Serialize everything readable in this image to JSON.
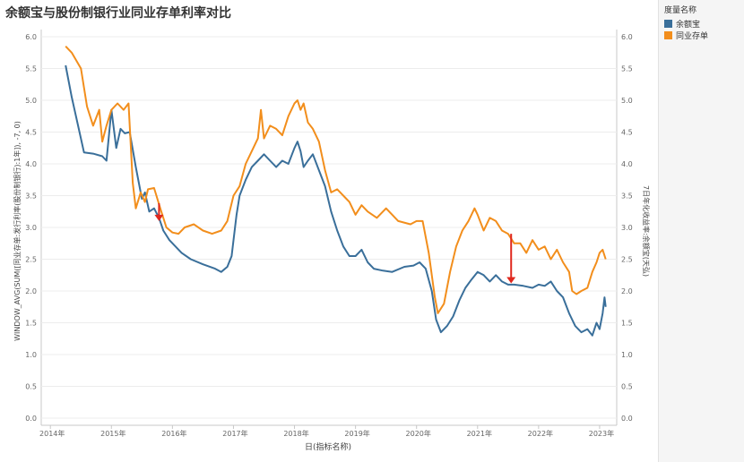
{
  "title": "余额宝与股份制银行业同业存单利率对比",
  "legend": {
    "title": "度量名称",
    "items": [
      {
        "label": "余额宝",
        "color": "#3a6f9a"
      },
      {
        "label": "同业存单",
        "color": "#f28e1c"
      }
    ]
  },
  "chart_data": {
    "type": "line",
    "xlabel": "日(指标名称)",
    "ylabel_left": "WINDOW_AVG(SUM([同业存单:发行利率(股份制银行):1年]), -7, 0)",
    "ylabel_right": "7日年化收益率:余额宝(天弘)",
    "ylim": [
      0,
      6
    ],
    "yticks": [
      "0.0",
      "0.5",
      "1.0",
      "1.5",
      "2.0",
      "2.5",
      "3.0",
      "3.5",
      "4.0",
      "4.5",
      "5.0",
      "5.5",
      "6.0"
    ],
    "xlim": [
      2013.85,
      2023.28
    ],
    "xticks": [
      "2014年",
      "2015年",
      "2016年",
      "2017年",
      "2018年",
      "2019年",
      "2020年",
      "2021年",
      "2022年",
      "2023年"
    ],
    "grid": "horizontal",
    "legend_position": "right",
    "series": [
      {
        "name": "余额宝",
        "color": "#3a6f9a",
        "points": [
          [
            2014.25,
            5.55
          ],
          [
            2014.35,
            5.05
          ],
          [
            2014.45,
            4.62
          ],
          [
            2014.55,
            4.18
          ],
          [
            2014.7,
            4.16
          ],
          [
            2014.85,
            4.12
          ],
          [
            2014.92,
            4.05
          ],
          [
            2015.0,
            4.85
          ],
          [
            2015.08,
            4.25
          ],
          [
            2015.15,
            4.55
          ],
          [
            2015.22,
            4.48
          ],
          [
            2015.3,
            4.5
          ],
          [
            2015.4,
            3.95
          ],
          [
            2015.5,
            3.45
          ],
          [
            2015.55,
            3.55
          ],
          [
            2015.62,
            3.25
          ],
          [
            2015.7,
            3.3
          ],
          [
            2015.78,
            3.15
          ],
          [
            2015.85,
            2.95
          ],
          [
            2015.95,
            2.8
          ],
          [
            2016.05,
            2.7
          ],
          [
            2016.15,
            2.6
          ],
          [
            2016.3,
            2.5
          ],
          [
            2016.5,
            2.42
          ],
          [
            2016.7,
            2.35
          ],
          [
            2016.8,
            2.3
          ],
          [
            2016.9,
            2.38
          ],
          [
            2016.97,
            2.55
          ],
          [
            2017.0,
            2.8
          ],
          [
            2017.05,
            3.2
          ],
          [
            2017.1,
            3.5
          ],
          [
            2017.2,
            3.75
          ],
          [
            2017.3,
            3.95
          ],
          [
            2017.4,
            4.05
          ],
          [
            2017.5,
            4.15
          ],
          [
            2017.6,
            4.05
          ],
          [
            2017.7,
            3.95
          ],
          [
            2017.8,
            4.05
          ],
          [
            2017.9,
            4.0
          ],
          [
            2018.0,
            4.25
          ],
          [
            2018.05,
            4.35
          ],
          [
            2018.1,
            4.2
          ],
          [
            2018.15,
            3.95
          ],
          [
            2018.22,
            4.05
          ],
          [
            2018.3,
            4.15
          ],
          [
            2018.4,
            3.9
          ],
          [
            2018.5,
            3.65
          ],
          [
            2018.6,
            3.25
          ],
          [
            2018.7,
            2.95
          ],
          [
            2018.8,
            2.7
          ],
          [
            2018.9,
            2.55
          ],
          [
            2019.0,
            2.55
          ],
          [
            2019.1,
            2.65
          ],
          [
            2019.2,
            2.45
          ],
          [
            2019.3,
            2.35
          ],
          [
            2019.45,
            2.32
          ],
          [
            2019.6,
            2.3
          ],
          [
            2019.8,
            2.38
          ],
          [
            2019.95,
            2.4
          ],
          [
            2020.05,
            2.45
          ],
          [
            2020.15,
            2.35
          ],
          [
            2020.25,
            2.0
          ],
          [
            2020.32,
            1.55
          ],
          [
            2020.4,
            1.35
          ],
          [
            2020.5,
            1.45
          ],
          [
            2020.6,
            1.6
          ],
          [
            2020.7,
            1.85
          ],
          [
            2020.8,
            2.05
          ],
          [
            2020.9,
            2.18
          ],
          [
            2021.0,
            2.3
          ],
          [
            2021.1,
            2.25
          ],
          [
            2021.2,
            2.15
          ],
          [
            2021.3,
            2.25
          ],
          [
            2021.4,
            2.15
          ],
          [
            2021.5,
            2.1
          ],
          [
            2021.6,
            2.1
          ],
          [
            2021.75,
            2.08
          ],
          [
            2021.9,
            2.05
          ],
          [
            2022.0,
            2.1
          ],
          [
            2022.1,
            2.08
          ],
          [
            2022.2,
            2.15
          ],
          [
            2022.3,
            2.0
          ],
          [
            2022.4,
            1.9
          ],
          [
            2022.5,
            1.65
          ],
          [
            2022.6,
            1.45
          ],
          [
            2022.7,
            1.35
          ],
          [
            2022.8,
            1.4
          ],
          [
            2022.88,
            1.3
          ],
          [
            2022.95,
            1.5
          ],
          [
            2023.0,
            1.4
          ],
          [
            2023.05,
            1.65
          ],
          [
            2023.08,
            1.9
          ],
          [
            2023.1,
            1.75
          ]
        ]
      },
      {
        "name": "同业存单",
        "color": "#f28e1c",
        "points": [
          [
            2014.25,
            5.85
          ],
          [
            2014.35,
            5.75
          ],
          [
            2014.5,
            5.5
          ],
          [
            2014.6,
            4.9
          ],
          [
            2014.7,
            4.6
          ],
          [
            2014.8,
            4.85
          ],
          [
            2014.85,
            4.35
          ],
          [
            2014.92,
            4.6
          ],
          [
            2015.0,
            4.85
          ],
          [
            2015.1,
            4.95
          ],
          [
            2015.2,
            4.85
          ],
          [
            2015.28,
            4.95
          ],
          [
            2015.35,
            3.7
          ],
          [
            2015.4,
            3.3
          ],
          [
            2015.48,
            3.55
          ],
          [
            2015.55,
            3.4
          ],
          [
            2015.6,
            3.6
          ],
          [
            2015.7,
            3.62
          ],
          [
            2015.8,
            3.3
          ],
          [
            2015.9,
            3.0
          ],
          [
            2016.0,
            2.92
          ],
          [
            2016.1,
            2.9
          ],
          [
            2016.2,
            3.0
          ],
          [
            2016.35,
            3.05
          ],
          [
            2016.5,
            2.95
          ],
          [
            2016.65,
            2.9
          ],
          [
            2016.8,
            2.95
          ],
          [
            2016.9,
            3.1
          ],
          [
            2017.0,
            3.5
          ],
          [
            2017.1,
            3.65
          ],
          [
            2017.2,
            4.0
          ],
          [
            2017.3,
            4.2
          ],
          [
            2017.4,
            4.4
          ],
          [
            2017.45,
            4.85
          ],
          [
            2017.5,
            4.4
          ],
          [
            2017.6,
            4.6
          ],
          [
            2017.7,
            4.55
          ],
          [
            2017.8,
            4.45
          ],
          [
            2017.9,
            4.75
          ],
          [
            2018.0,
            4.95
          ],
          [
            2018.05,
            5.0
          ],
          [
            2018.1,
            4.85
          ],
          [
            2018.15,
            4.95
          ],
          [
            2018.22,
            4.65
          ],
          [
            2018.3,
            4.55
          ],
          [
            2018.4,
            4.35
          ],
          [
            2018.5,
            3.9
          ],
          [
            2018.6,
            3.55
          ],
          [
            2018.7,
            3.6
          ],
          [
            2018.8,
            3.5
          ],
          [
            2018.9,
            3.4
          ],
          [
            2019.0,
            3.2
          ],
          [
            2019.1,
            3.35
          ],
          [
            2019.2,
            3.25
          ],
          [
            2019.35,
            3.15
          ],
          [
            2019.5,
            3.3
          ],
          [
            2019.7,
            3.1
          ],
          [
            2019.9,
            3.05
          ],
          [
            2020.0,
            3.1
          ],
          [
            2020.1,
            3.1
          ],
          [
            2020.2,
            2.6
          ],
          [
            2020.3,
            1.9
          ],
          [
            2020.35,
            1.65
          ],
          [
            2020.45,
            1.8
          ],
          [
            2020.55,
            2.3
          ],
          [
            2020.65,
            2.7
          ],
          [
            2020.75,
            2.95
          ],
          [
            2020.85,
            3.1
          ],
          [
            2020.95,
            3.3
          ],
          [
            2021.0,
            3.2
          ],
          [
            2021.1,
            2.95
          ],
          [
            2021.2,
            3.15
          ],
          [
            2021.3,
            3.1
          ],
          [
            2021.4,
            2.95
          ],
          [
            2021.5,
            2.9
          ],
          [
            2021.6,
            2.75
          ],
          [
            2021.7,
            2.75
          ],
          [
            2021.8,
            2.6
          ],
          [
            2021.9,
            2.8
          ],
          [
            2022.0,
            2.65
          ],
          [
            2022.1,
            2.7
          ],
          [
            2022.2,
            2.5
          ],
          [
            2022.3,
            2.65
          ],
          [
            2022.4,
            2.45
          ],
          [
            2022.5,
            2.3
          ],
          [
            2022.55,
            2.0
          ],
          [
            2022.62,
            1.95
          ],
          [
            2022.7,
            2.0
          ],
          [
            2022.8,
            2.05
          ],
          [
            2022.88,
            2.3
          ],
          [
            2022.95,
            2.45
          ],
          [
            2023.0,
            2.6
          ],
          [
            2023.05,
            2.65
          ],
          [
            2023.1,
            2.5
          ]
        ]
      }
    ],
    "annotations": [
      {
        "type": "arrow",
        "x": 2015.78,
        "y_from": 3.38,
        "y_to": 3.1,
        "color": "#e0281e"
      },
      {
        "type": "arrow",
        "x": 2021.55,
        "y_from": 2.9,
        "y_to": 2.12,
        "color": "#e0281e"
      }
    ]
  }
}
